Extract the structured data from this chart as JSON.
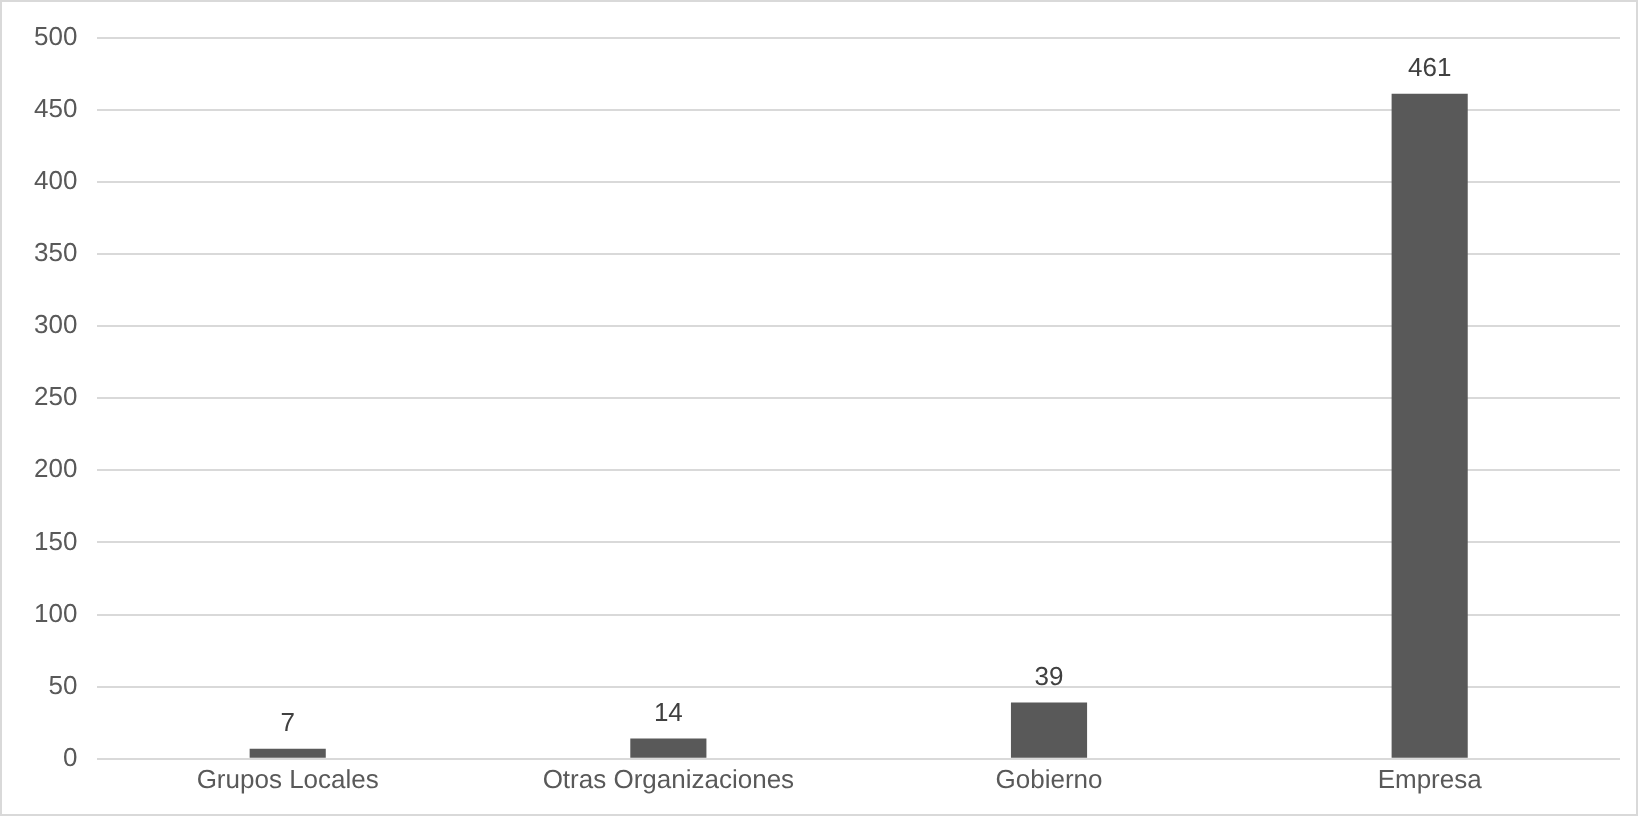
{
  "chart_data": {
    "type": "bar",
    "categories": [
      "Grupos Locales",
      "Otras Organizaciones",
      "Gobierno",
      "Empresa"
    ],
    "values": [
      7,
      14,
      39,
      461
    ],
    "color": "#595959",
    "ylim": [
      0,
      500
    ],
    "yticks": [
      0,
      50,
      100,
      150,
      200,
      250,
      300,
      350,
      400,
      450,
      500
    ],
    "grid": "y",
    "data_labels": true,
    "legend": false
  }
}
